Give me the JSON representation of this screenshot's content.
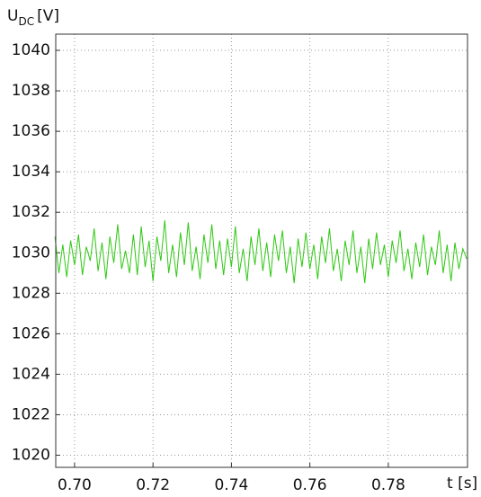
{
  "chart_data": {
    "type": "line",
    "ylabel": {
      "main": "U",
      "subscript": "DC",
      "unit": "[V]"
    },
    "xlabel": "t [s]",
    "x": [
      0.695,
      0.696,
      0.697,
      0.698,
      0.699,
      0.7,
      0.701,
      0.702,
      0.703,
      0.704,
      0.705,
      0.706,
      0.707,
      0.708,
      0.709,
      0.71,
      0.711,
      0.712,
      0.713,
      0.714,
      0.715,
      0.716,
      0.717,
      0.718,
      0.719,
      0.72,
      0.721,
      0.722,
      0.723,
      0.724,
      0.725,
      0.726,
      0.727,
      0.728,
      0.729,
      0.73,
      0.731,
      0.732,
      0.733,
      0.734,
      0.735,
      0.736,
      0.737,
      0.738,
      0.739,
      0.74,
      0.741,
      0.742,
      0.743,
      0.744,
      0.745,
      0.746,
      0.747,
      0.748,
      0.749,
      0.75,
      0.751,
      0.752,
      0.753,
      0.754,
      0.755,
      0.756,
      0.757,
      0.758,
      0.759,
      0.76,
      0.761,
      0.762,
      0.763,
      0.764,
      0.765,
      0.766,
      0.767,
      0.768,
      0.769,
      0.77,
      0.771,
      0.772,
      0.773,
      0.774,
      0.775,
      0.776,
      0.777,
      0.778,
      0.779,
      0.78,
      0.781,
      0.782,
      0.783,
      0.784,
      0.785,
      0.786,
      0.787,
      0.788,
      0.789,
      0.79,
      0.791,
      0.792,
      0.793,
      0.794,
      0.795,
      0.796,
      0.797,
      0.798,
      0.799,
      0.8
    ],
    "series": [
      {
        "color": "#2ec812",
        "values": [
          1030.8,
          1029.0,
          1030.4,
          1028.8,
          1030.6,
          1029.4,
          1030.9,
          1028.9,
          1030.3,
          1029.6,
          1031.2,
          1029.1,
          1030.5,
          1028.7,
          1030.8,
          1029.5,
          1031.4,
          1029.2,
          1030.1,
          1029.0,
          1030.9,
          1028.9,
          1031.3,
          1029.3,
          1030.6,
          1028.6,
          1030.8,
          1029.6,
          1031.6,
          1029.0,
          1030.4,
          1028.8,
          1031.0,
          1029.4,
          1031.5,
          1029.1,
          1030.3,
          1028.7,
          1030.9,
          1029.5,
          1031.4,
          1029.2,
          1030.6,
          1028.9,
          1030.7,
          1029.3,
          1031.3,
          1029.0,
          1030.2,
          1028.6,
          1030.8,
          1029.4,
          1031.2,
          1029.1,
          1030.5,
          1028.8,
          1030.9,
          1029.6,
          1031.1,
          1029.0,
          1030.3,
          1028.5,
          1030.7,
          1029.3,
          1031.0,
          1029.2,
          1030.4,
          1028.7,
          1030.8,
          1029.5,
          1031.2,
          1029.1,
          1030.2,
          1028.6,
          1030.6,
          1029.4,
          1031.1,
          1029.0,
          1030.3,
          1028.5,
          1030.7,
          1029.2,
          1031.0,
          1029.4,
          1030.4,
          1028.8,
          1030.6,
          1029.5,
          1031.1,
          1029.1,
          1030.2,
          1028.7,
          1030.5,
          1029.3,
          1030.9,
          1028.9,
          1030.3,
          1029.4,
          1031.1,
          1029.0,
          1030.4,
          1028.6,
          1030.5,
          1029.2,
          1030.2,
          1029.7
        ]
      }
    ],
    "xlim": [
      0.6952,
      0.8002
    ],
    "ylim": [
      1019.4,
      1040.8
    ],
    "xticks": [
      {
        "value": 0.7,
        "label": "0.70"
      },
      {
        "value": 0.72,
        "label": "0.72"
      },
      {
        "value": 0.74,
        "label": "0.74"
      },
      {
        "value": 0.76,
        "label": "0.76"
      },
      {
        "value": 0.78,
        "label": "0.78"
      }
    ],
    "yticks": [
      1020,
      1022,
      1024,
      1026,
      1028,
      1030,
      1032,
      1034,
      1036,
      1038,
      1040
    ],
    "grid": true
  }
}
